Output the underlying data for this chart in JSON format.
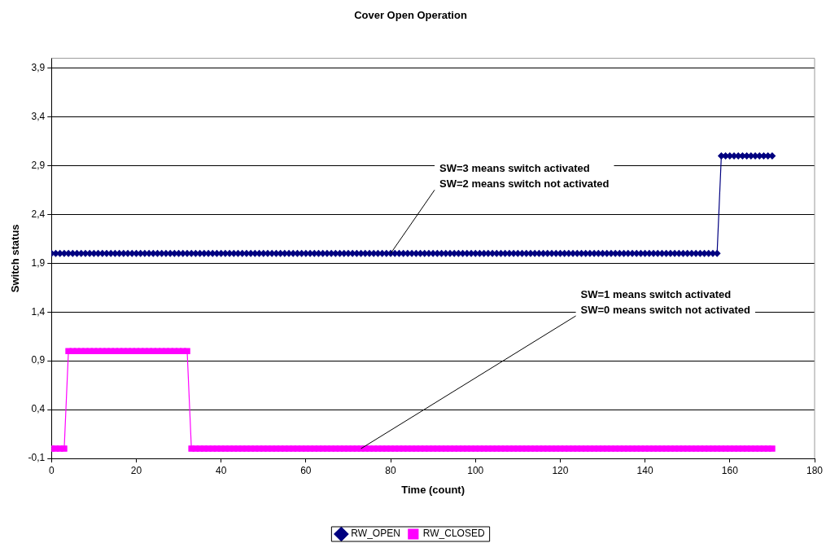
{
  "chart_data": {
    "type": "line",
    "title": "Cover Open Operation",
    "xlabel": "Time (count)",
    "ylabel": "Switch status",
    "x": [
      0,
      1,
      2,
      3,
      4,
      5,
      6,
      7,
      8,
      9,
      10,
      11,
      12,
      13,
      14,
      15,
      16,
      17,
      18,
      19,
      20,
      21,
      22,
      23,
      24,
      25,
      26,
      27,
      28,
      29,
      30,
      31,
      32,
      33,
      34,
      35,
      36,
      37,
      38,
      39,
      40,
      41,
      42,
      43,
      44,
      45,
      46,
      47,
      48,
      49,
      50,
      51,
      52,
      53,
      54,
      55,
      56,
      57,
      58,
      59,
      60,
      61,
      62,
      63,
      64,
      65,
      66,
      67,
      68,
      69,
      70,
      71,
      72,
      73,
      74,
      75,
      76,
      77,
      78,
      79,
      80,
      81,
      82,
      83,
      84,
      85,
      86,
      87,
      88,
      89,
      90,
      91,
      92,
      93,
      94,
      95,
      96,
      97,
      98,
      99,
      100,
      101,
      102,
      103,
      104,
      105,
      106,
      107,
      108,
      109,
      110,
      111,
      112,
      113,
      114,
      115,
      116,
      117,
      118,
      119,
      120,
      121,
      122,
      123,
      124,
      125,
      126,
      127,
      128,
      129,
      130,
      131,
      132,
      133,
      134,
      135,
      136,
      137,
      138,
      139,
      140,
      141,
      142,
      143,
      144,
      145,
      146,
      147,
      148,
      149,
      150,
      151,
      152,
      153,
      154,
      155,
      156,
      157,
      158,
      159,
      160,
      161,
      162,
      163,
      164,
      165,
      166,
      167,
      168,
      169,
      170
    ],
    "series": [
      {
        "name": "RW_OPEN",
        "color": "#000080",
        "marker": "diamond",
        "values": [
          2,
          2,
          2,
          2,
          2,
          2,
          2,
          2,
          2,
          2,
          2,
          2,
          2,
          2,
          2,
          2,
          2,
          2,
          2,
          2,
          2,
          2,
          2,
          2,
          2,
          2,
          2,
          2,
          2,
          2,
          2,
          2,
          2,
          2,
          2,
          2,
          2,
          2,
          2,
          2,
          2,
          2,
          2,
          2,
          2,
          2,
          2,
          2,
          2,
          2,
          2,
          2,
          2,
          2,
          2,
          2,
          2,
          2,
          2,
          2,
          2,
          2,
          2,
          2,
          2,
          2,
          2,
          2,
          2,
          2,
          2,
          2,
          2,
          2,
          2,
          2,
          2,
          2,
          2,
          2,
          2,
          2,
          2,
          2,
          2,
          2,
          2,
          2,
          2,
          2,
          2,
          2,
          2,
          2,
          2,
          2,
          2,
          2,
          2,
          2,
          2,
          2,
          2,
          2,
          2,
          2,
          2,
          2,
          2,
          2,
          2,
          2,
          2,
          2,
          2,
          2,
          2,
          2,
          2,
          2,
          2,
          2,
          2,
          2,
          2,
          2,
          2,
          2,
          2,
          2,
          2,
          2,
          2,
          2,
          2,
          2,
          2,
          2,
          2,
          2,
          2,
          2,
          2,
          2,
          2,
          2,
          2,
          2,
          2,
          2,
          2,
          2,
          2,
          2,
          2,
          2,
          2,
          2,
          3,
          3,
          3,
          3,
          3,
          3,
          3,
          3,
          3,
          3,
          3,
          3,
          3
        ]
      },
      {
        "name": "RW_CLOSED",
        "color": "#ff00ff",
        "marker": "square",
        "values": [
          0,
          0,
          0,
          0,
          1,
          1,
          1,
          1,
          1,
          1,
          1,
          1,
          1,
          1,
          1,
          1,
          1,
          1,
          1,
          1,
          1,
          1,
          1,
          1,
          1,
          1,
          1,
          1,
          1,
          1,
          1,
          1,
          1,
          0,
          0,
          0,
          0,
          0,
          0,
          0,
          0,
          0,
          0,
          0,
          0,
          0,
          0,
          0,
          0,
          0,
          0,
          0,
          0,
          0,
          0,
          0,
          0,
          0,
          0,
          0,
          0,
          0,
          0,
          0,
          0,
          0,
          0,
          0,
          0,
          0,
          0,
          0,
          0,
          0,
          0,
          0,
          0,
          0,
          0,
          0,
          0,
          0,
          0,
          0,
          0,
          0,
          0,
          0,
          0,
          0,
          0,
          0,
          0,
          0,
          0,
          0,
          0,
          0,
          0,
          0,
          0,
          0,
          0,
          0,
          0,
          0,
          0,
          0,
          0,
          0,
          0,
          0,
          0,
          0,
          0,
          0,
          0,
          0,
          0,
          0,
          0,
          0,
          0,
          0,
          0,
          0,
          0,
          0,
          0,
          0,
          0,
          0,
          0,
          0,
          0,
          0,
          0,
          0,
          0,
          0,
          0,
          0,
          0,
          0,
          0,
          0,
          0,
          0,
          0,
          0,
          0,
          0,
          0,
          0,
          0,
          0,
          0,
          0,
          0,
          0,
          0,
          0,
          0,
          0,
          0,
          0,
          0,
          0,
          0,
          0,
          0
        ]
      }
    ],
    "xlim": [
      0,
      180
    ],
    "xticks": [
      0,
      20,
      40,
      60,
      80,
      100,
      120,
      140,
      160,
      180
    ],
    "ylim": [
      -0.1,
      4.0
    ],
    "yticks": [
      {
        "value": -0.1,
        "label": "-0,1"
      },
      {
        "value": 0.4,
        "label": "0,4"
      },
      {
        "value": 0.9,
        "label": "0,9"
      },
      {
        "value": 1.4,
        "label": "1,4"
      },
      {
        "value": 1.9,
        "label": "1,9"
      },
      {
        "value": 2.4,
        "label": "2,4"
      },
      {
        "value": 2.9,
        "label": "2,9"
      },
      {
        "value": 3.4,
        "label": "3,4"
      },
      {
        "value": 3.9,
        "label": "3,9"
      }
    ],
    "grid": "y",
    "legend": "bottom",
    "annotations": [
      {
        "text": "SW=3 means switch activated\nSW=2 means switch not activated",
        "x": 80,
        "y": 2
      },
      {
        "text": "SW=1 means switch activated\nSW=0 means switch not activated",
        "x": 73,
        "y": 0
      }
    ]
  }
}
